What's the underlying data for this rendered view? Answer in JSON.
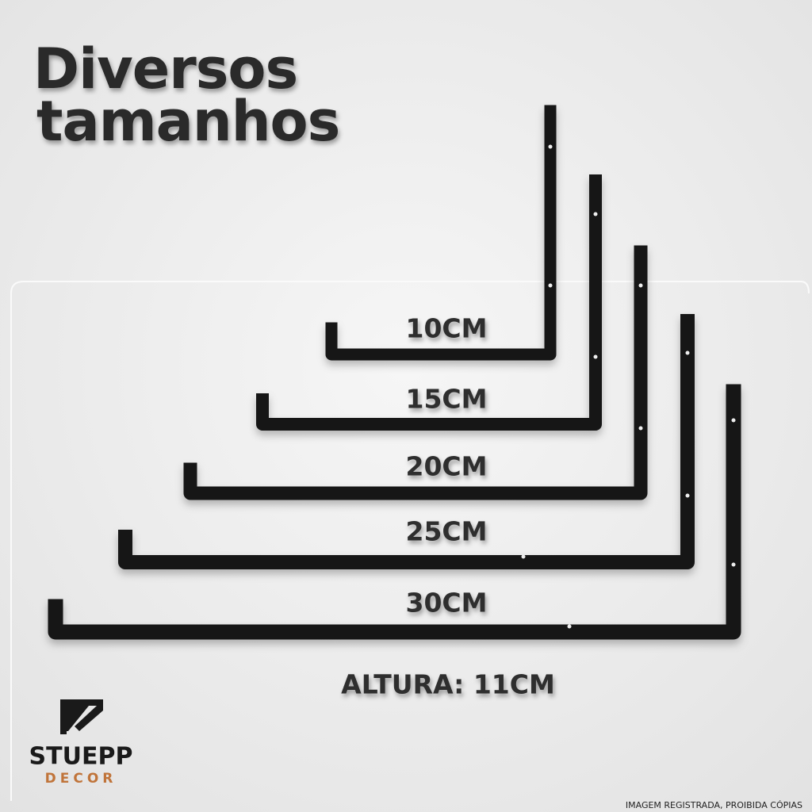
{
  "header": {
    "title_lines": [
      "Diversos",
      "tamanhos"
    ]
  },
  "sizes": [
    "10CM",
    "15CM",
    "20CM",
    "25CM",
    "30CM"
  ],
  "height_note": "ALTURA: 11CM",
  "brand": {
    "name": "STUEPP",
    "tagline": "DECOR"
  },
  "watermark": "IMAGEM REGISTRADA, PROIBIDA CÓPIAS"
}
